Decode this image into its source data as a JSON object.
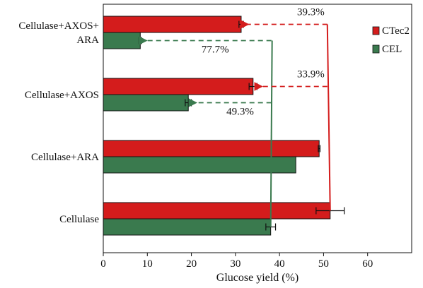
{
  "chart_data": {
    "type": "bar",
    "orientation": "horizontal",
    "title": "",
    "xlabel": "Glucose yield (%)",
    "ylabel": "",
    "xlim": [
      0,
      70
    ],
    "x_ticks": [
      "0",
      "10",
      "20",
      "30",
      "40",
      "50",
      "60"
    ],
    "categories": [
      [
        "Cellulase+AXOS+",
        "ARA"
      ],
      [
        "Cellulase+AXOS"
      ],
      [
        "Cellulase+ARA"
      ],
      [
        "Cellulase"
      ]
    ],
    "series": [
      {
        "name": "CTec2",
        "color": "#d41c1c",
        "values": [
          31.3,
          34.0,
          49.0,
          51.5
        ],
        "errors": [
          0.5,
          0.9,
          0.2,
          3.2
        ]
      },
      {
        "name": "CEL",
        "color": "#3a7a4e",
        "values": [
          8.4,
          19.3,
          43.7,
          38.0
        ],
        "errors": [
          0.3,
          0.7,
          0.0,
          1.1
        ]
      }
    ],
    "legend_position": "top-right",
    "grid": false,
    "annotations": [
      {
        "text": "39.3%",
        "series": "CTec2",
        "category_index": 0,
        "line_color": "#d41c1c"
      },
      {
        "text": "33.9%",
        "series": "CTec2",
        "category_index": 1,
        "line_color": "#d41c1c"
      },
      {
        "text": "77.7%",
        "series": "CEL",
        "category_index": 0,
        "line_color": "#3a7a4e"
      },
      {
        "text": "49.3%",
        "series": "CEL",
        "category_index": 1,
        "line_color": "#3a7a4e"
      }
    ]
  }
}
